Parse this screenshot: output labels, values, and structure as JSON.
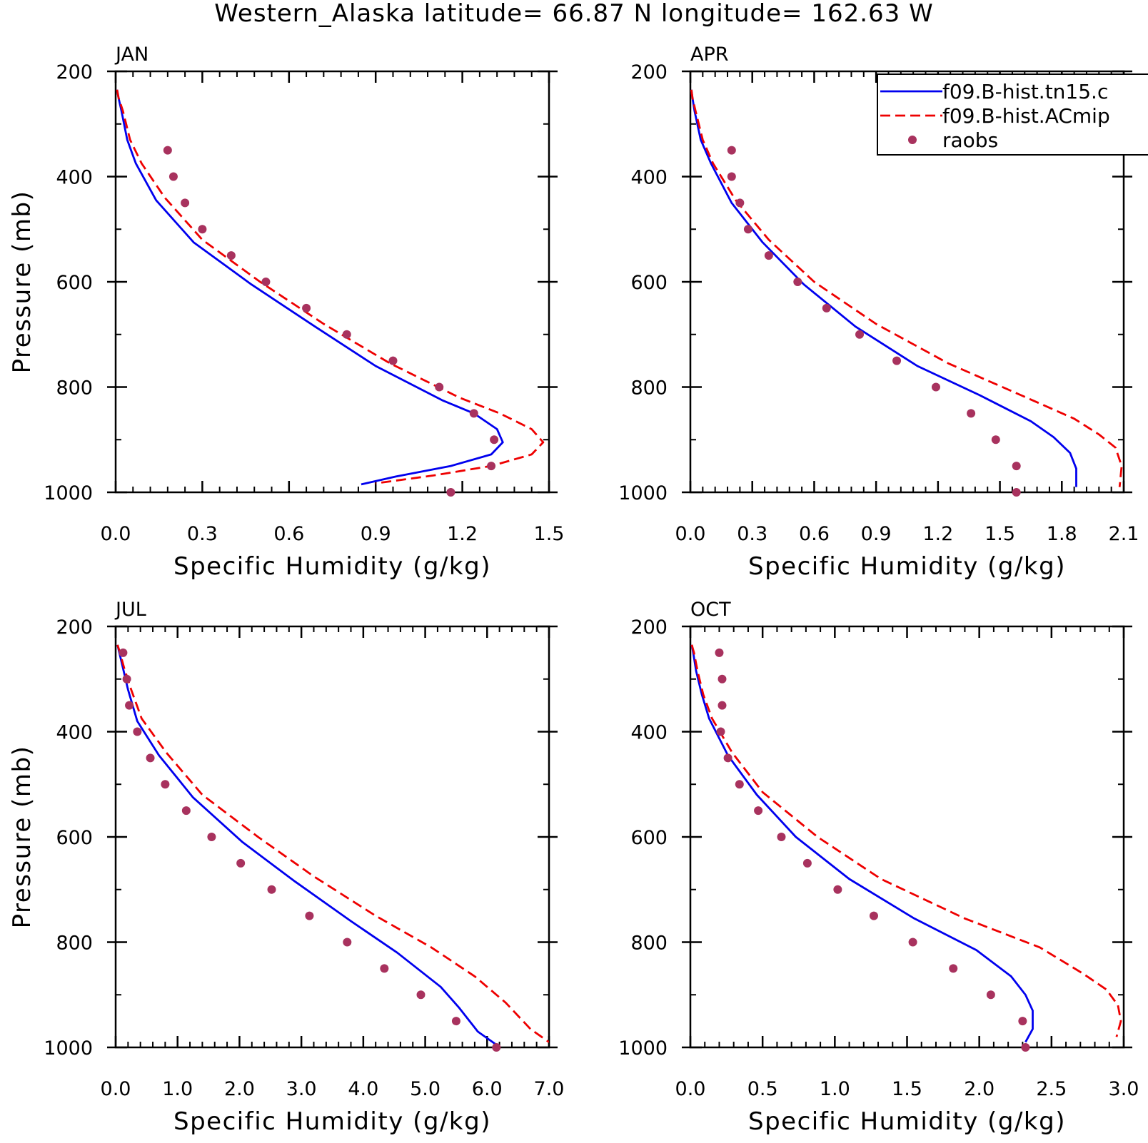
{
  "title": "Western_Alaska  latitude= 66.87 N longitude= 162.63 W",
  "legend": {
    "entries": [
      {
        "label": "f09.B-hist.tn15.c",
        "style": "solid",
        "color": "#0000ee",
        "marker": "line"
      },
      {
        "label": "f09.B-hist.ACmip",
        "style": "dashed",
        "color": "#ee0000",
        "marker": "line"
      },
      {
        "label": "raobs",
        "style": "marker",
        "color": "#a8325e",
        "marker": "dot"
      }
    ]
  },
  "colors": {
    "model1": "#0000ee",
    "model2": "#ee0000",
    "raobs": "#a8325e",
    "axis": "#000000"
  },
  "chart_data": [
    {
      "type": "line",
      "panel": "JAN",
      "xlabel": "Specific Humidity (g/kg)",
      "ylabel": "Pressure (mb)",
      "xlim": [
        0.0,
        1.5
      ],
      "ylim": [
        200,
        1000
      ],
      "xticks": [
        "0.0",
        "0.3",
        "0.6",
        "0.9",
        "1.2",
        "1.5"
      ],
      "yticks": [
        "200",
        "400",
        "600",
        "800",
        "1000"
      ],
      "series": [
        {
          "name": "f09.B-hist.tn15.c",
          "x": [
            0.005,
            0.01,
            0.02,
            0.04,
            0.07,
            0.14,
            0.27,
            0.47,
            0.69,
            0.9,
            1.13,
            1.24,
            1.32,
            1.34,
            1.3,
            1.16,
            0.97,
            0.85
          ],
          "y": [
            235,
            250,
            275,
            330,
            375,
            445,
            525,
            605,
            685,
            760,
            825,
            850,
            880,
            905,
            928,
            950,
            970,
            985
          ]
        },
        {
          "name": "f09.B-hist.ACmip",
          "x": [
            0.005,
            0.01,
            0.025,
            0.05,
            0.09,
            0.17,
            0.3,
            0.5,
            0.72,
            0.95,
            1.19,
            1.33,
            1.44,
            1.48,
            1.44,
            1.3,
            1.1,
            0.9
          ],
          "y": [
            235,
            250,
            275,
            330,
            375,
            440,
            520,
            600,
            680,
            755,
            820,
            850,
            880,
            905,
            928,
            950,
            968,
            983
          ]
        },
        {
          "name": "raobs",
          "x": [
            0.18,
            0.2,
            0.24,
            0.3,
            0.4,
            0.52,
            0.66,
            0.8,
            0.96,
            1.12,
            1.24,
            1.31,
            1.3,
            1.16
          ],
          "y": [
            350,
            400,
            450,
            500,
            550,
            600,
            650,
            700,
            750,
            800,
            850,
            900,
            950,
            1000
          ]
        }
      ]
    },
    {
      "type": "line",
      "panel": "APR",
      "xlabel": "Specific Humidity (g/kg)",
      "ylabel": "",
      "xlim": [
        0.0,
        2.1
      ],
      "ylim": [
        200,
        1000
      ],
      "xticks": [
        "0.0",
        "0.3",
        "0.6",
        "0.9",
        "1.2",
        "1.5",
        "1.8",
        "2.1"
      ],
      "yticks": [
        "200",
        "400",
        "600",
        "800",
        "1000"
      ],
      "series": [
        {
          "name": "f09.B-hist.tn15.c",
          "x": [
            0.005,
            0.01,
            0.02,
            0.05,
            0.1,
            0.2,
            0.35,
            0.55,
            0.8,
            1.1,
            1.4,
            1.65,
            1.76,
            1.84,
            1.87,
            1.87
          ],
          "y": [
            235,
            250,
            275,
            330,
            375,
            450,
            525,
            605,
            685,
            760,
            815,
            865,
            895,
            925,
            955,
            990
          ]
        },
        {
          "name": "f09.B-hist.ACmip",
          "x": [
            0.005,
            0.01,
            0.025,
            0.06,
            0.11,
            0.22,
            0.38,
            0.6,
            0.9,
            1.25,
            1.6,
            1.86,
            1.98,
            2.06,
            2.09,
            2.08
          ],
          "y": [
            235,
            250,
            275,
            330,
            375,
            445,
            520,
            600,
            680,
            755,
            815,
            860,
            890,
            915,
            950,
            990
          ]
        },
        {
          "name": "raobs",
          "x": [
            0.2,
            0.2,
            0.24,
            0.28,
            0.38,
            0.52,
            0.66,
            0.82,
            1.0,
            1.19,
            1.36,
            1.48,
            1.58,
            1.58
          ],
          "y": [
            350,
            400,
            450,
            500,
            550,
            600,
            650,
            700,
            750,
            800,
            850,
            900,
            950,
            1000
          ]
        }
      ]
    },
    {
      "type": "line",
      "panel": "JUL",
      "xlabel": "Specific Humidity (g/kg)",
      "ylabel": "Pressure (mb)",
      "xlim": [
        0.0,
        7.0
      ],
      "ylim": [
        200,
        1000
      ],
      "xticks": [
        "0.0",
        "1.0",
        "2.0",
        "3.0",
        "4.0",
        "5.0",
        "6.0",
        "7.0"
      ],
      "yticks": [
        "200",
        "400",
        "600",
        "800",
        "1000"
      ],
      "series": [
        {
          "name": "f09.B-hist.tn15.c",
          "x": [
            0.03,
            0.06,
            0.12,
            0.2,
            0.35,
            0.7,
            1.25,
            2.05,
            2.9,
            3.8,
            4.55,
            5.25,
            5.55,
            5.85,
            6.15
          ],
          "y": [
            235,
            250,
            280,
            320,
            380,
            445,
            525,
            610,
            685,
            760,
            820,
            885,
            925,
            970,
            995
          ]
        },
        {
          "name": "f09.B-hist.ACmip",
          "x": [
            0.03,
            0.07,
            0.14,
            0.25,
            0.42,
            0.82,
            1.4,
            2.3,
            3.2,
            4.2,
            5.1,
            5.8,
            6.3,
            6.7,
            7.0
          ],
          "y": [
            235,
            250,
            280,
            320,
            375,
            440,
            520,
            600,
            675,
            750,
            810,
            865,
            915,
            965,
            990
          ]
        },
        {
          "name": "raobs",
          "x": [
            0.12,
            0.18,
            0.22,
            0.35,
            0.56,
            0.8,
            1.14,
            1.55,
            2.02,
            2.52,
            3.13,
            3.74,
            4.34,
            4.93,
            5.5,
            6.15
          ],
          "y": [
            250,
            300,
            350,
            400,
            450,
            500,
            550,
            600,
            650,
            700,
            750,
            800,
            850,
            900,
            950,
            1000
          ]
        }
      ]
    },
    {
      "type": "line",
      "panel": "OCT",
      "xlabel": "Specific Humidity (g/kg)",
      "ylabel": "",
      "xlim": [
        0.0,
        3.0
      ],
      "ylim": [
        200,
        1000
      ],
      "xticks": [
        "0.0",
        "0.5",
        "1.0",
        "1.5",
        "2.0",
        "2.5",
        "3.0"
      ],
      "yticks": [
        "200",
        "400",
        "600",
        "800",
        "1000"
      ],
      "series": [
        {
          "name": "f09.B-hist.tn15.c",
          "x": [
            0.01,
            0.02,
            0.04,
            0.08,
            0.13,
            0.26,
            0.46,
            0.73,
            1.1,
            1.55,
            1.98,
            2.22,
            2.32,
            2.37,
            2.37,
            2.32
          ],
          "y": [
            235,
            250,
            285,
            330,
            375,
            445,
            520,
            600,
            680,
            755,
            815,
            865,
            900,
            930,
            965,
            990
          ]
        },
        {
          "name": "f09.B-hist.ACmip",
          "x": [
            0.01,
            0.025,
            0.05,
            0.09,
            0.15,
            0.29,
            0.5,
            0.88,
            1.32,
            1.9,
            2.42,
            2.72,
            2.88,
            2.96,
            2.98,
            2.95
          ],
          "y": [
            235,
            250,
            285,
            330,
            375,
            440,
            515,
            600,
            680,
            755,
            810,
            860,
            890,
            920,
            950,
            980
          ]
        },
        {
          "name": "raobs",
          "x": [
            0.2,
            0.22,
            0.22,
            0.21,
            0.26,
            0.34,
            0.47,
            0.63,
            0.81,
            1.02,
            1.27,
            1.54,
            1.82,
            2.08,
            2.3,
            2.32
          ],
          "y": [
            250,
            300,
            350,
            400,
            450,
            500,
            550,
            600,
            650,
            700,
            750,
            800,
            850,
            900,
            950,
            1000
          ]
        }
      ]
    }
  ]
}
